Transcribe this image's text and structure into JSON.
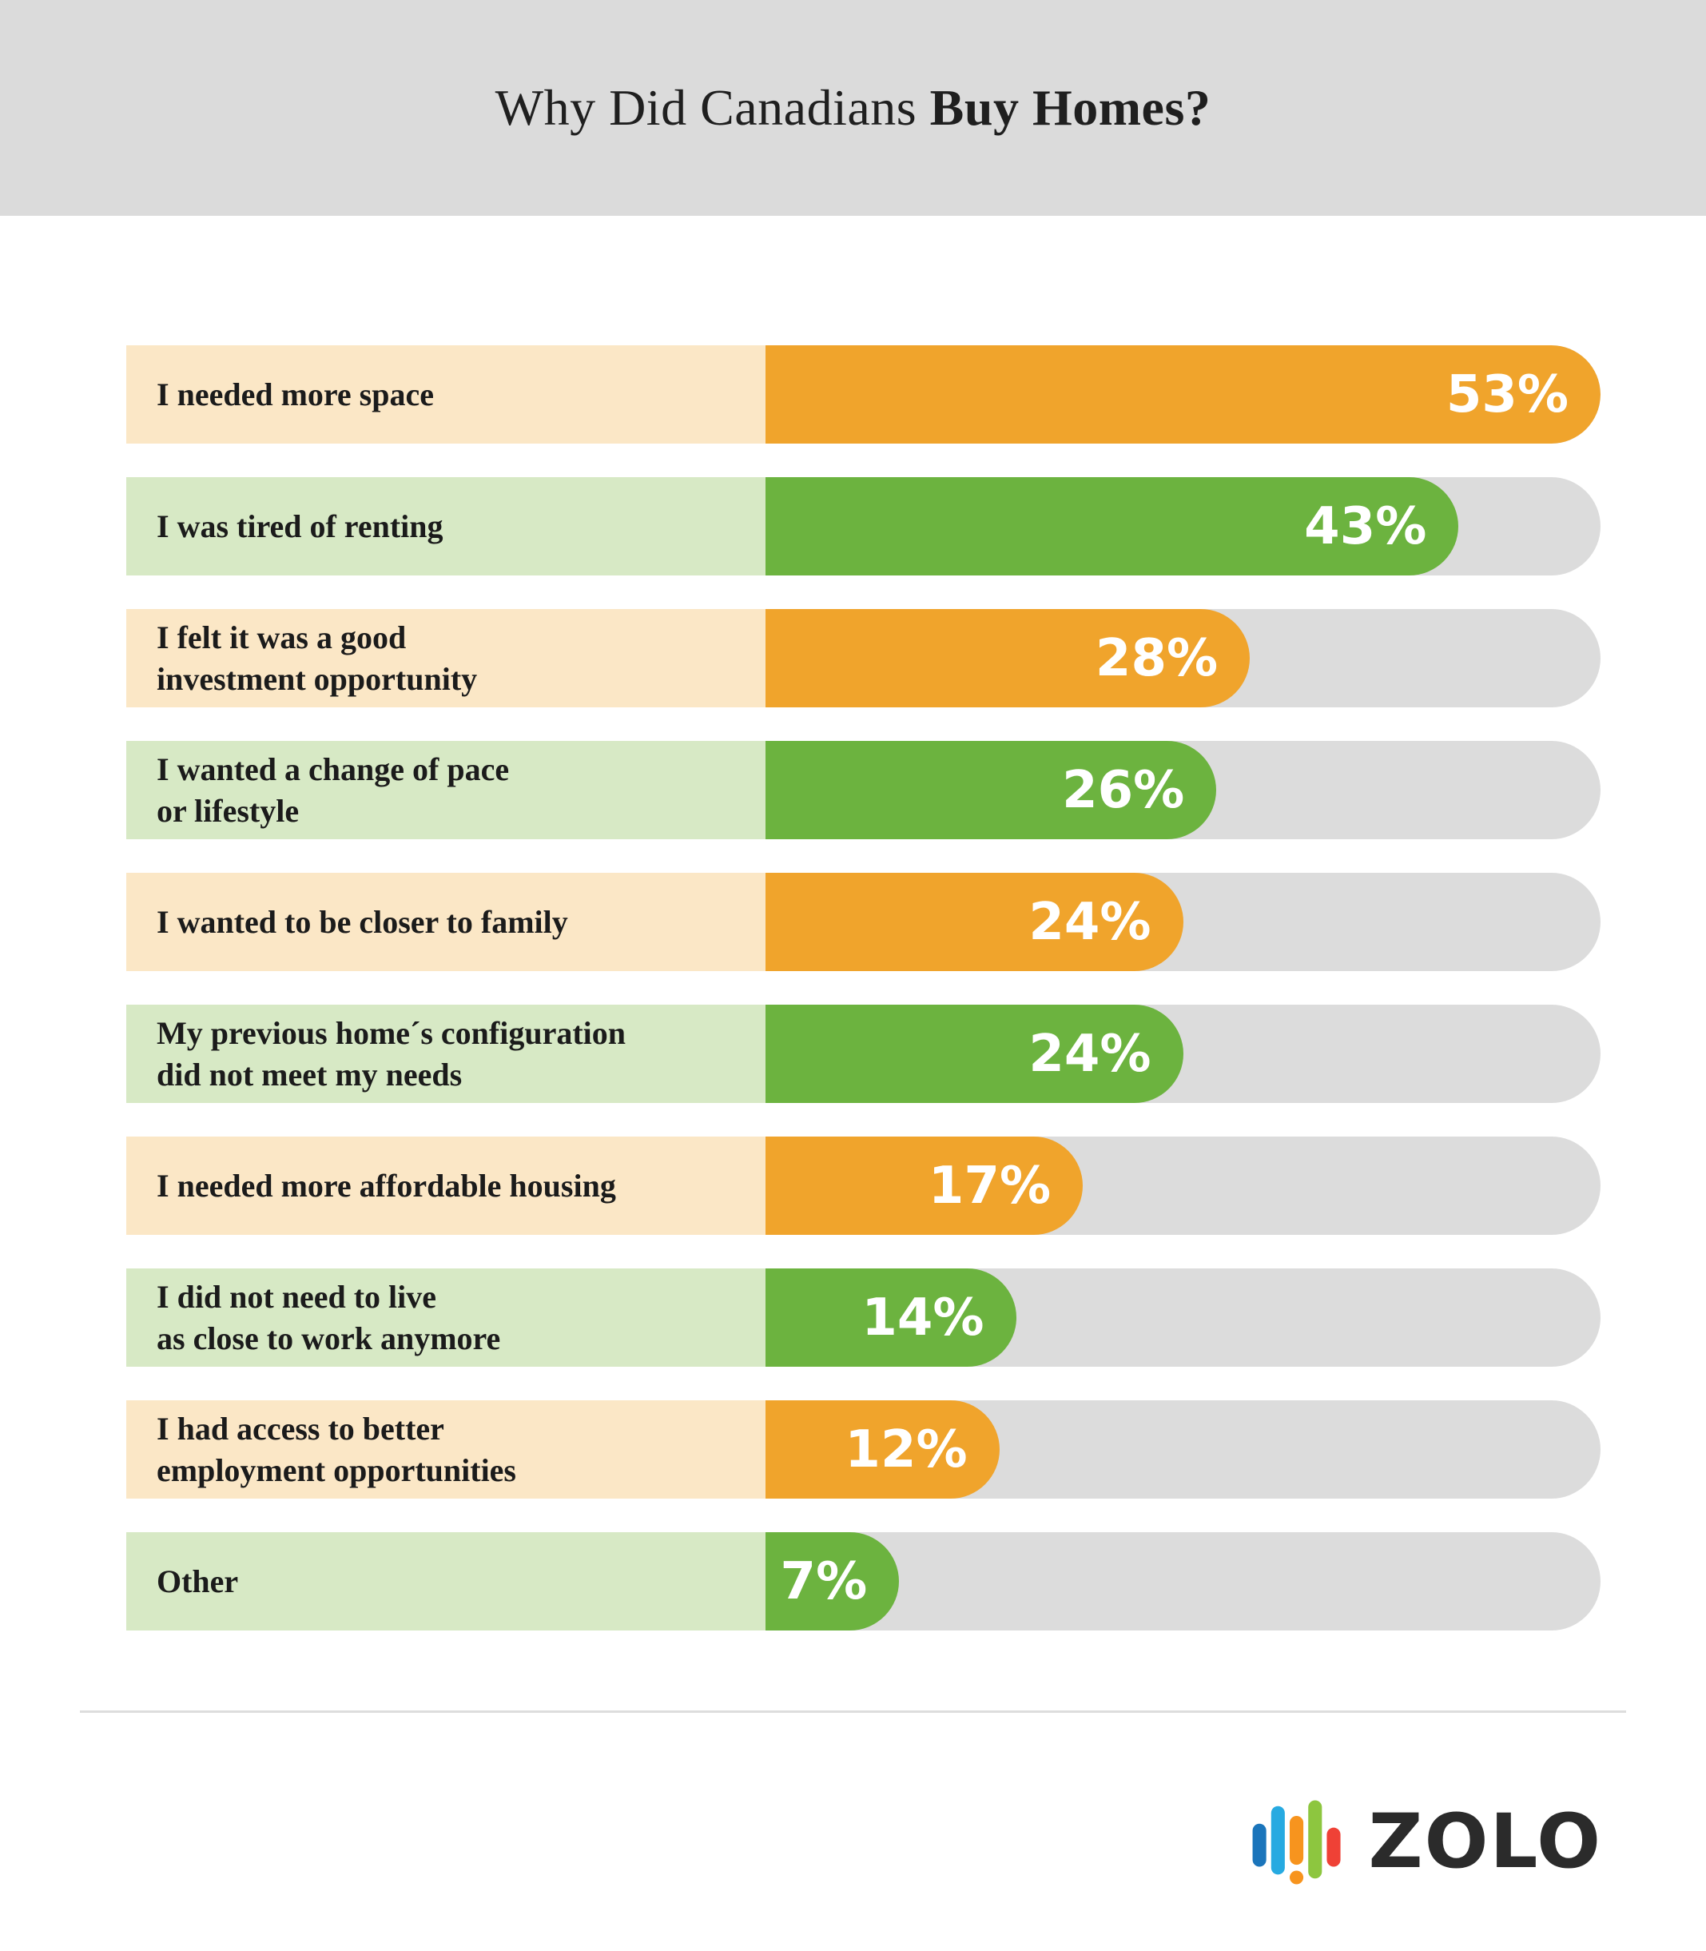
{
  "header": {
    "title_regular": "Why Did Canadians ",
    "title_bold": "Buy Homes?",
    "band_color": "#dbdbdb"
  },
  "chart_data": {
    "type": "bar",
    "orientation": "horizontal",
    "title": "Why Did Canadians Buy Homes?",
    "unit": "%",
    "categories": [
      "I needed more space",
      "I was tired of renting",
      "I felt it was a good investment opportunity",
      "I wanted a change of pace or lifestyle",
      "I wanted to be closer to family",
      "My previous home´s configuration did not meet my needs",
      "I needed more affordable housing",
      "I did not need to live as close to work anymore",
      "I had access to better employment opportunities",
      "Other"
    ],
    "values": [
      53,
      43,
      28,
      26,
      24,
      24,
      17,
      14,
      12,
      7
    ],
    "value_labels": [
      "53%",
      "43%",
      "28%",
      "26%",
      "24%",
      "24%",
      "17%",
      "14%",
      "12%",
      "7%"
    ],
    "bar_colors": {
      "orange": "#F0A42C",
      "green": "#6CB33F"
    },
    "label_bg_colors": {
      "orange": "#FBE7C6",
      "green": "#D7E9C5"
    },
    "track_color": "#DCDCDC",
    "legend": "none",
    "grid": false,
    "bar_widths_pct": [
      100,
      83,
      58,
      54,
      50,
      50,
      38,
      30,
      28,
      16
    ],
    "rows": [
      {
        "label_lines": [
          "I needed more space"
        ],
        "value": 53,
        "value_label": "53%",
        "color": "orange",
        "bar_pct": 100
      },
      {
        "label_lines": [
          "I was tired of renting"
        ],
        "value": 43,
        "value_label": "43%",
        "color": "green",
        "bar_pct": 83
      },
      {
        "label_lines": [
          "I felt it was a good",
          "investment opportunity"
        ],
        "value": 28,
        "value_label": "28%",
        "color": "orange",
        "bar_pct": 58
      },
      {
        "label_lines": [
          "I wanted a change of pace",
          "or lifestyle"
        ],
        "value": 26,
        "value_label": "26%",
        "color": "green",
        "bar_pct": 54
      },
      {
        "label_lines": [
          "I wanted to be closer to family"
        ],
        "value": 24,
        "value_label": "24%",
        "color": "orange",
        "bar_pct": 50
      },
      {
        "label_lines": [
          "My previous home´s configuration",
          "did not meet my needs"
        ],
        "value": 24,
        "value_label": "24%",
        "color": "green",
        "bar_pct": 50
      },
      {
        "label_lines": [
          "I needed more affordable housing"
        ],
        "value": 17,
        "value_label": "17%",
        "color": "orange",
        "bar_pct": 38
      },
      {
        "label_lines": [
          "I did not need to live",
          "as close to work anymore"
        ],
        "value": 14,
        "value_label": "14%",
        "color": "green",
        "bar_pct": 30
      },
      {
        "label_lines": [
          "I had access to better",
          "employment opportunities"
        ],
        "value": 12,
        "value_label": "12%",
        "color": "orange",
        "bar_pct": 28
      },
      {
        "label_lines": [
          "Other"
        ],
        "value": 7,
        "value_label": "7%",
        "color": "green",
        "bar_pct": 16
      }
    ]
  },
  "footer": {
    "logo_text": "ZOLO",
    "divider_color": "#dddddd",
    "logo_icon_colors": {
      "blue": "#1B75BB",
      "light_blue": "#27AAE1",
      "orange": "#F7941E",
      "green": "#8DC63F",
      "red": "#EF4136"
    }
  }
}
